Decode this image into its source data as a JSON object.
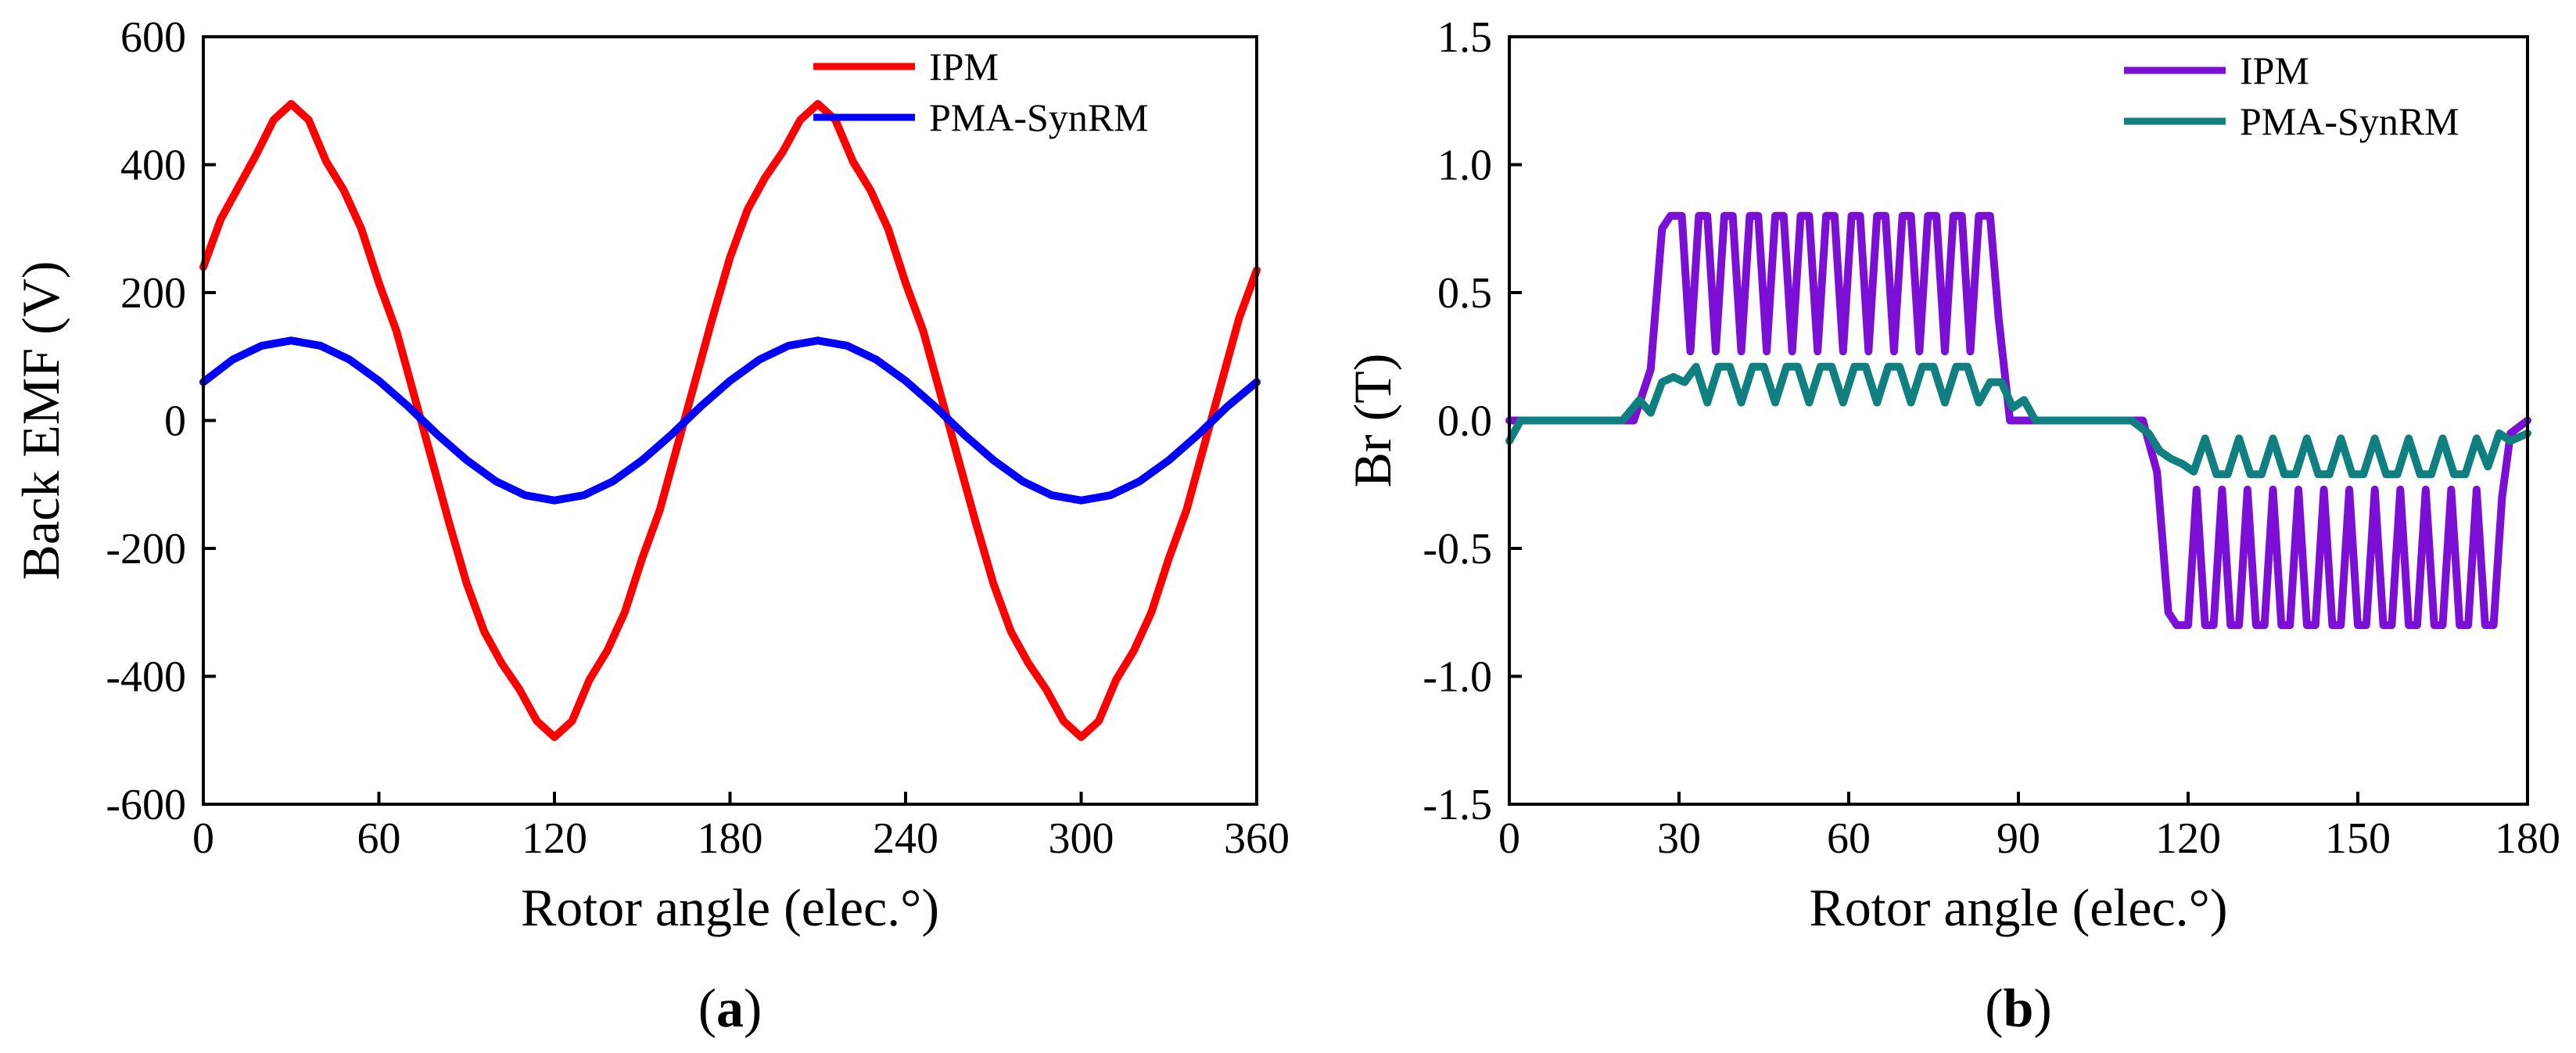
{
  "chart_data": [
    {
      "id": "a",
      "type": "line",
      "caption": {
        "open": "(",
        "letter": "a",
        "close": ")"
      },
      "xlabel": "Rotor angle (elec.°)",
      "ylabel": "Back EMF (V)",
      "xlim": [
        0,
        360
      ],
      "ylim": [
        -600,
        600
      ],
      "xticks": [
        0,
        60,
        120,
        180,
        240,
        300,
        360
      ],
      "yticks": [
        -600,
        -400,
        -200,
        0,
        200,
        400,
        600
      ],
      "xtick_labels": [
        "0",
        "60",
        "120",
        "180",
        "240",
        "300",
        "360"
      ],
      "ytick_labels": [
        "-600",
        "-400",
        "-200",
        "0",
        "200",
        "400",
        "600"
      ],
      "legend_position": "top-right",
      "series": [
        {
          "name": "IPM",
          "color": "#ff0000",
          "x": [
            0,
            6,
            12,
            18,
            24,
            30,
            36,
            42,
            48,
            54,
            60,
            66,
            72,
            78,
            84,
            90,
            96,
            102,
            108,
            114,
            120,
            126,
            132,
            138,
            144,
            150,
            156,
            162,
            168,
            174,
            180,
            186,
            192,
            198,
            204,
            210,
            216,
            222,
            228,
            234,
            240,
            246,
            252,
            258,
            264,
            270,
            276,
            282,
            288,
            294,
            300,
            306,
            312,
            318,
            324,
            330,
            336,
            342,
            348,
            354,
            360
          ],
          "y": [
            240,
            315,
            365,
            415,
            470,
            495,
            470,
            405,
            360,
            300,
            215,
            140,
            40,
            -60,
            -160,
            -255,
            -330,
            -380,
            -420,
            -470,
            -495,
            -470,
            -405,
            -360,
            -300,
            -215,
            -140,
            -40,
            60,
            160,
            255,
            330,
            380,
            420,
            470,
            495,
            470,
            405,
            360,
            300,
            215,
            140,
            40,
            -60,
            -160,
            -255,
            -330,
            -380,
            -420,
            -470,
            -495,
            -470,
            -405,
            -360,
            -300,
            -215,
            -140,
            -40,
            60,
            160,
            235
          ]
        },
        {
          "name": "PMA-SynRM",
          "color": "#0000ff",
          "x": [
            0,
            10,
            20,
            30,
            40,
            50,
            60,
            70,
            80,
            90,
            100,
            110,
            120,
            130,
            140,
            150,
            160,
            170,
            180,
            190,
            200,
            210,
            220,
            230,
            240,
            250,
            260,
            270,
            280,
            290,
            300,
            310,
            320,
            330,
            340,
            350,
            360
          ],
          "y": [
            60,
            95,
            117,
            125,
            117,
            95,
            62,
            22,
            -22,
            -62,
            -95,
            -117,
            -125,
            -117,
            -95,
            -62,
            -22,
            22,
            62,
            95,
            117,
            125,
            117,
            95,
            62,
            22,
            -22,
            -62,
            -95,
            -117,
            -125,
            -117,
            -95,
            -62,
            -22,
            22,
            60
          ]
        }
      ]
    },
    {
      "id": "b",
      "type": "line",
      "caption": {
        "open": "(",
        "letter": "b",
        "close": ")"
      },
      "xlabel": "Rotor angle (elec.°)",
      "ylabel": "Br (T)",
      "xlim": [
        0,
        180
      ],
      "ylim": [
        -1.5,
        1.5
      ],
      "xticks": [
        0,
        30,
        60,
        90,
        120,
        150,
        180
      ],
      "yticks": [
        -1.5,
        -1.0,
        -0.5,
        0.0,
        0.5,
        1.0,
        1.5
      ],
      "xtick_labels": [
        "0",
        "30",
        "60",
        "90",
        "120",
        "150",
        "180"
      ],
      "ytick_labels": [
        "-1.5",
        "-1.0",
        "-0.5",
        "0.0",
        "0.5",
        "1.0",
        "1.5"
      ],
      "legend_position": "top-right",
      "series": [
        {
          "name": "IPM",
          "color": "#7b0fd6",
          "x": [
            0,
            22,
            25,
            27,
            28.5,
            30.5,
            32,
            33.5,
            35,
            36.5,
            38,
            39.5,
            41,
            42.5,
            44,
            45.5,
            47,
            48.5,
            50,
            51.5,
            53,
            54.5,
            56,
            57.5,
            59,
            60.5,
            62,
            63.5,
            65,
            66.5,
            68,
            69.5,
            71,
            72.5,
            74,
            75.5,
            77,
            78.5,
            80,
            81.5,
            83,
            85,
            86.5,
            88.5,
            90,
            112,
            114.5,
            116.5,
            118,
            120,
            121.5,
            123,
            124.5,
            126,
            127.5,
            129,
            130.5,
            132,
            133.5,
            135,
            136.5,
            138,
            139.5,
            141,
            142.5,
            144,
            145.5,
            147,
            148.5,
            150,
            151.5,
            153,
            154.5,
            156,
            157.5,
            159,
            160.5,
            162,
            163.5,
            165,
            166.5,
            168,
            169.5,
            171,
            172.5,
            174,
            175.5,
            177,
            180
          ],
          "y": [
            0,
            0,
            0.2,
            0.75,
            0.8,
            0.8,
            0.27,
            0.8,
            0.8,
            0.27,
            0.8,
            0.8,
            0.27,
            0.8,
            0.8,
            0.27,
            0.8,
            0.8,
            0.27,
            0.8,
            0.8,
            0.27,
            0.8,
            0.8,
            0.27,
            0.8,
            0.8,
            0.27,
            0.8,
            0.8,
            0.27,
            0.8,
            0.8,
            0.27,
            0.8,
            0.8,
            0.27,
            0.8,
            0.8,
            0.27,
            0.8,
            0.8,
            0.4,
            0,
            0,
            0,
            -0.2,
            -0.75,
            -0.8,
            -0.8,
            -0.27,
            -0.8,
            -0.8,
            -0.27,
            -0.8,
            -0.8,
            -0.27,
            -0.8,
            -0.8,
            -0.27,
            -0.8,
            -0.8,
            -0.27,
            -0.8,
            -0.8,
            -0.27,
            -0.8,
            -0.8,
            -0.27,
            -0.8,
            -0.8,
            -0.27,
            -0.8,
            -0.8,
            -0.27,
            -0.8,
            -0.8,
            -0.27,
            -0.8,
            -0.8,
            -0.27,
            -0.8,
            -0.8,
            -0.27,
            -0.8,
            -0.8,
            -0.3,
            -0.05,
            0
          ]
        },
        {
          "name": "PMA-SynRM",
          "color": "#0f7f7f",
          "x": [
            0,
            2,
            20,
            23,
            25,
            27,
            29,
            31,
            33,
            35,
            37,
            39,
            41,
            43,
            45,
            47,
            49,
            51,
            53,
            55,
            57,
            59,
            61,
            63,
            65,
            67,
            69,
            71,
            73,
            75,
            77,
            79,
            81,
            83,
            85,
            87,
            89,
            91,
            93,
            110,
            113,
            115,
            117,
            119,
            121,
            123,
            125,
            127,
            129,
            131,
            133,
            135,
            137,
            139,
            141,
            143,
            145,
            147,
            149,
            151,
            153,
            155,
            157,
            159,
            161,
            163,
            165,
            167,
            169,
            171,
            173,
            175,
            177,
            180
          ],
          "y": [
            -0.08,
            0,
            0,
            0.08,
            0.03,
            0.15,
            0.17,
            0.15,
            0.21,
            0.07,
            0.21,
            0.21,
            0.07,
            0.21,
            0.21,
            0.07,
            0.21,
            0.21,
            0.07,
            0.21,
            0.21,
            0.07,
            0.21,
            0.21,
            0.07,
            0.21,
            0.21,
            0.07,
            0.21,
            0.21,
            0.07,
            0.21,
            0.21,
            0.07,
            0.15,
            0.15,
            0.05,
            0.08,
            0,
            0,
            -0.05,
            -0.12,
            -0.15,
            -0.17,
            -0.2,
            -0.07,
            -0.21,
            -0.21,
            -0.07,
            -0.21,
            -0.21,
            -0.07,
            -0.21,
            -0.21,
            -0.07,
            -0.21,
            -0.21,
            -0.07,
            -0.21,
            -0.21,
            -0.07,
            -0.21,
            -0.21,
            -0.07,
            -0.21,
            -0.21,
            -0.07,
            -0.21,
            -0.21,
            -0.07,
            -0.18,
            -0.05,
            -0.08,
            -0.05
          ]
        }
      ]
    }
  ]
}
